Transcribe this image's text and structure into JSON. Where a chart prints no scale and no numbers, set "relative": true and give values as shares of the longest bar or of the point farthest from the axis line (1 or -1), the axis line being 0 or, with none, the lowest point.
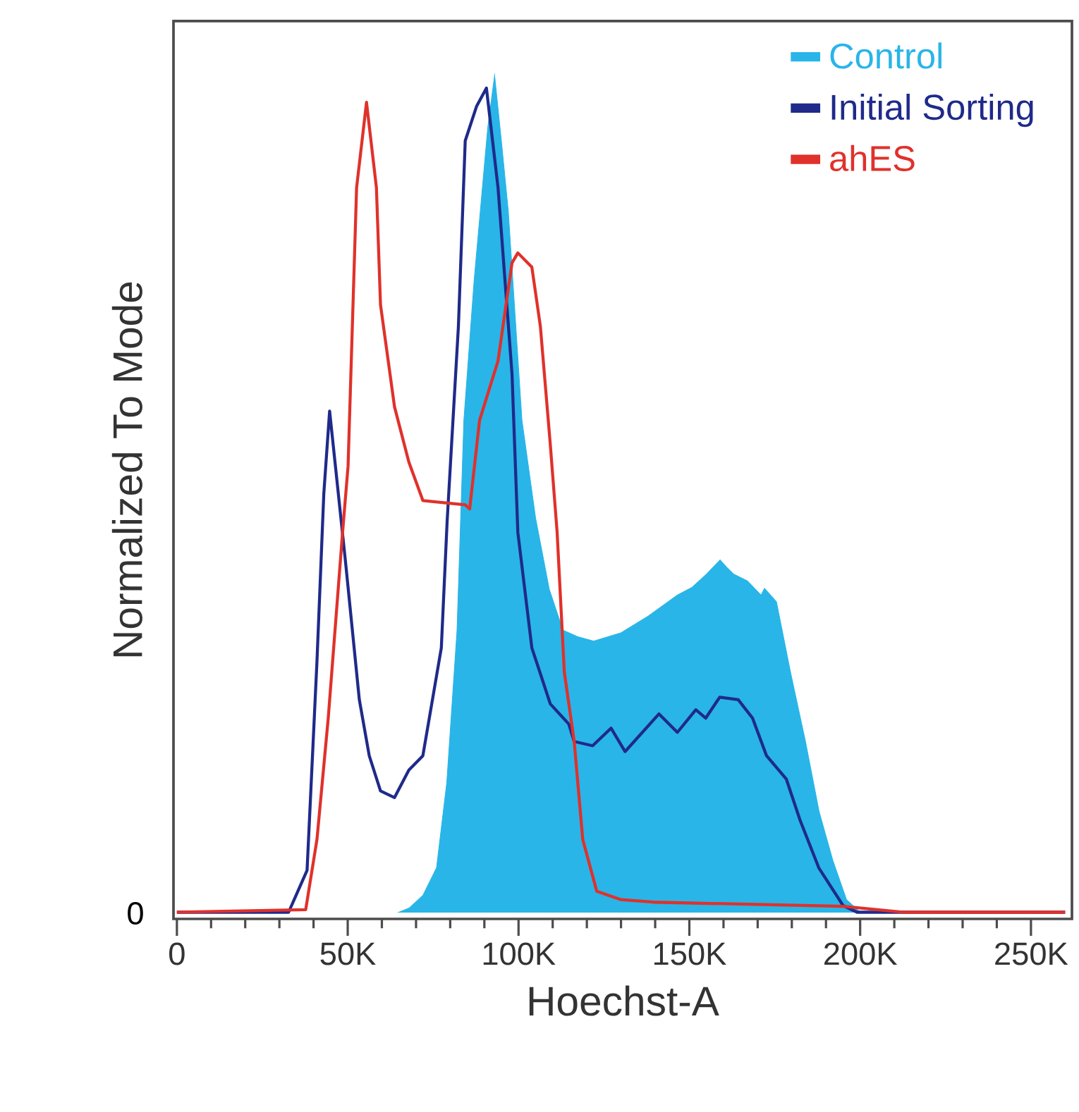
{
  "chart_data": {
    "type": "line",
    "relative": true,
    "xlabel": "Hoechst-A",
    "ylabel": "Normalized To Mode",
    "legend": "top right",
    "xlim": [
      -1000,
      262000
    ],
    "xticks": [
      0,
      {
        "value": 50000,
        "label": "50K"
      },
      {
        "value": 100000,
        "label": "100K"
      },
      {
        "value": 150000,
        "label": "150K"
      },
      {
        "value": 200000,
        "label": "200K"
      },
      {
        "value": 250000,
        "label": "250K"
      }
    ],
    "annotations": [
      "0"
    ],
    "series": [
      {
        "name": "Control",
        "type": "area",
        "color": "#29b5e8",
        "x": [
          65000,
          68000,
          72000,
          76000,
          79000,
          82000,
          84000,
          87000,
          91000,
          93000,
          95000,
          97000,
          101000,
          105000,
          109000,
          113000,
          117500,
          122000,
          130000,
          138000,
          146500,
          150700,
          155000,
          159000,
          161000,
          163000,
          167000,
          171000,
          172000,
          175500,
          179600,
          184000,
          188000,
          192000,
          196000,
          200000
        ],
        "values": [
          0,
          0.005,
          0.02,
          0.053,
          0.155,
          0.337,
          0.588,
          0.755,
          0.938,
          1.0,
          0.921,
          0.838,
          0.588,
          0.471,
          0.386,
          0.337,
          0.329,
          0.324,
          0.334,
          0.354,
          0.379,
          0.388,
          0.404,
          0.421,
          0.412,
          0.404,
          0.396,
          0.379,
          0.387,
          0.371,
          0.287,
          0.204,
          0.12,
          0.062,
          0.015,
          0
        ]
      },
      {
        "name": "Initial Sorting",
        "color": "#1f2a8a",
        "x": [
          0,
          32700,
          38100,
          41000,
          43000,
          44700,
          49300,
          53400,
          56300,
          59600,
          63700,
          67900,
          72000,
          77400,
          79100,
          82400,
          84400,
          87700,
          90600,
          94000,
          98100,
          99800,
          103900,
          109300,
          114700,
          116300,
          121700,
          127100,
          131200,
          141100,
          146500,
          151900,
          154800,
          158900,
          164300,
          168500,
          172600,
          178400,
          182500,
          187900,
          195000,
          199100,
          260000
        ],
        "values": [
          0,
          0,
          0.05,
          0.3,
          0.5,
          0.599,
          0.421,
          0.254,
          0.187,
          0.145,
          0.137,
          0.17,
          0.187,
          0.316,
          0.467,
          0.7,
          0.922,
          0.963,
          0.985,
          0.866,
          0.643,
          0.454,
          0.316,
          0.249,
          0.225,
          0.204,
          0.199,
          0.22,
          0.192,
          0.237,
          0.215,
          0.242,
          0.232,
          0.257,
          0.254,
          0.232,
          0.187,
          0.159,
          0.109,
          0.053,
          0.008,
          0,
          0
        ]
      },
      {
        "name": "ahES",
        "color": "#e0312b",
        "x": [
          0,
          37700,
          41000,
          44300,
          48400,
          50100,
          52600,
          55500,
          58400,
          59600,
          63700,
          67900,
          72000,
          84400,
          85700,
          88600,
          94000,
          98100,
          99800,
          103900,
          106400,
          109300,
          111300,
          113400,
          116300,
          118800,
          122900,
          130000,
          139500,
          195000,
          212700,
          260000
        ],
        "values": [
          0,
          0.003,
          0.087,
          0.232,
          0.449,
          0.533,
          0.866,
          0.968,
          0.866,
          0.726,
          0.604,
          0.538,
          0.492,
          0.487,
          0.482,
          0.588,
          0.659,
          0.776,
          0.788,
          0.771,
          0.7,
          0.559,
          0.454,
          0.287,
          0.204,
          0.087,
          0.025,
          0.015,
          0.012,
          0.007,
          0,
          0
        ]
      }
    ]
  }
}
